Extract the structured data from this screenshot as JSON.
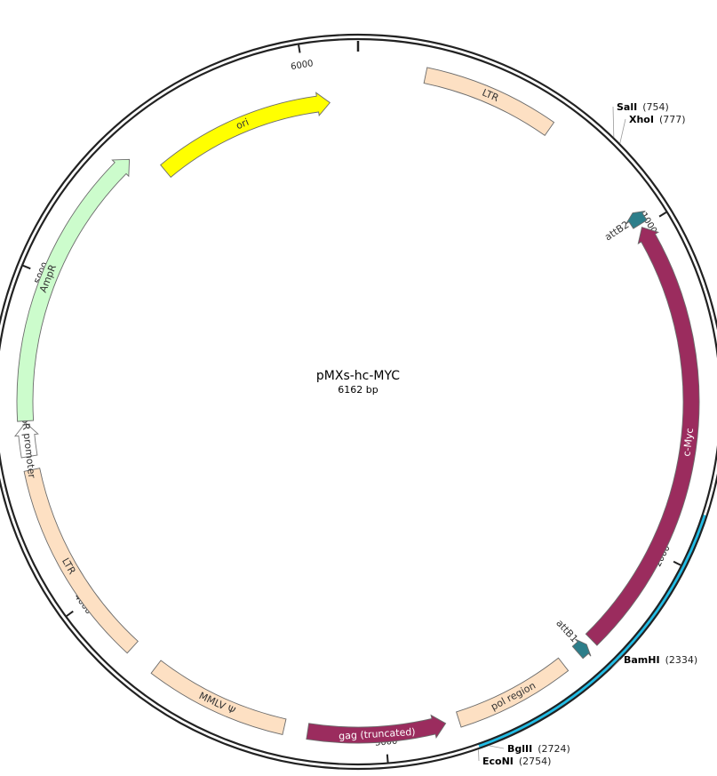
{
  "plasmid": {
    "name": "pMXs-hc-MYC",
    "length_label": "6162 bp",
    "length": 6162
  },
  "ticks": [
    {
      "pos": 1000,
      "label": "1000"
    },
    {
      "pos": 2000,
      "label": "2000"
    },
    {
      "pos": 3000,
      "label": "3000"
    },
    {
      "pos": 4000,
      "label": "4000"
    },
    {
      "pos": 5000,
      "label": "5000"
    },
    {
      "pos": 6000,
      "label": "6000"
    }
  ],
  "highlight_region": {
    "start": 1850,
    "end": 2750,
    "color": "#22bde6"
  },
  "features": [
    {
      "id": "ltr-right",
      "label": "LTR",
      "start": 200,
      "end": 600,
      "ring": "outer",
      "shape": "box",
      "color": "#fde0c3",
      "text_color": "#333333"
    },
    {
      "id": "attb2",
      "label": "attB2",
      "start": 950,
      "end": 990,
      "ring": "outer",
      "shape": "arrow-rev",
      "color": "#2d7e8a",
      "text_color": "#333333"
    },
    {
      "id": "c-myc",
      "label": "c-Myc",
      "start": 1000,
      "end": 2320,
      "ring": "outer",
      "shape": "arrow-rev",
      "color": "#9b2c5e",
      "text_color": "#ffffff"
    },
    {
      "id": "attb1",
      "label": "attB1",
      "start": 2340,
      "end": 2375,
      "ring": "outer",
      "shape": "arrow-rev",
      "color": "#2d7e8a",
      "text_color": "#333333"
    },
    {
      "id": "pol-region",
      "label": "pol region",
      "start": 2430,
      "end": 2780,
      "ring": "outer",
      "shape": "box",
      "color": "#fde0c3",
      "text_color": "#333333"
    },
    {
      "id": "gag-truncated",
      "label": "gag (truncated)",
      "start": 2820,
      "end": 3230,
      "ring": "outer",
      "shape": "arrow-rev",
      "color": "#9b2c5e",
      "text_color": "#ffffff"
    },
    {
      "id": "mmlv-psi",
      "label": "MMLV Ψ",
      "start": 3300,
      "end": 3720,
      "ring": "outer",
      "shape": "box",
      "color": "#fde0c3",
      "text_color": "#333333"
    },
    {
      "id": "ltr-left",
      "label": "LTR",
      "start": 3810,
      "end": 4420,
      "ring": "outer",
      "shape": "box",
      "color": "#fde0c3",
      "text_color": "#333333"
    },
    {
      "id": "ampr-promoter",
      "label": "AmpR promoter",
      "start": 4460,
      "end": 4560,
      "ring": "outer",
      "shape": "arrow-fwd",
      "color": "#ffffff",
      "text_color": "#333333",
      "stroke": "#777777"
    },
    {
      "id": "ampr",
      "label": "AmpR",
      "start": 4565,
      "end": 5420,
      "ring": "outer",
      "shape": "arrow-fwd",
      "color": "#ccfccc",
      "text_color": "#333333"
    },
    {
      "id": "ori",
      "label": "ori",
      "start": 5480,
      "end": 6070,
      "ring": "inner",
      "shape": "arrow-fwd",
      "color": "#ffff00",
      "text_color": "#333333"
    }
  ],
  "sites": [
    {
      "name": "SalI",
      "pos_label": "(754)",
      "pos": 754
    },
    {
      "name": "XhoI",
      "pos_label": "(777)",
      "pos": 777
    },
    {
      "name": "BamHI",
      "pos_label": "(2334)",
      "pos": 2334
    },
    {
      "name": "BglII",
      "pos_label": "(2724)",
      "pos": 2724
    },
    {
      "name": "EcoNI",
      "pos_label": "(2754)",
      "pos": 2754
    }
  ]
}
